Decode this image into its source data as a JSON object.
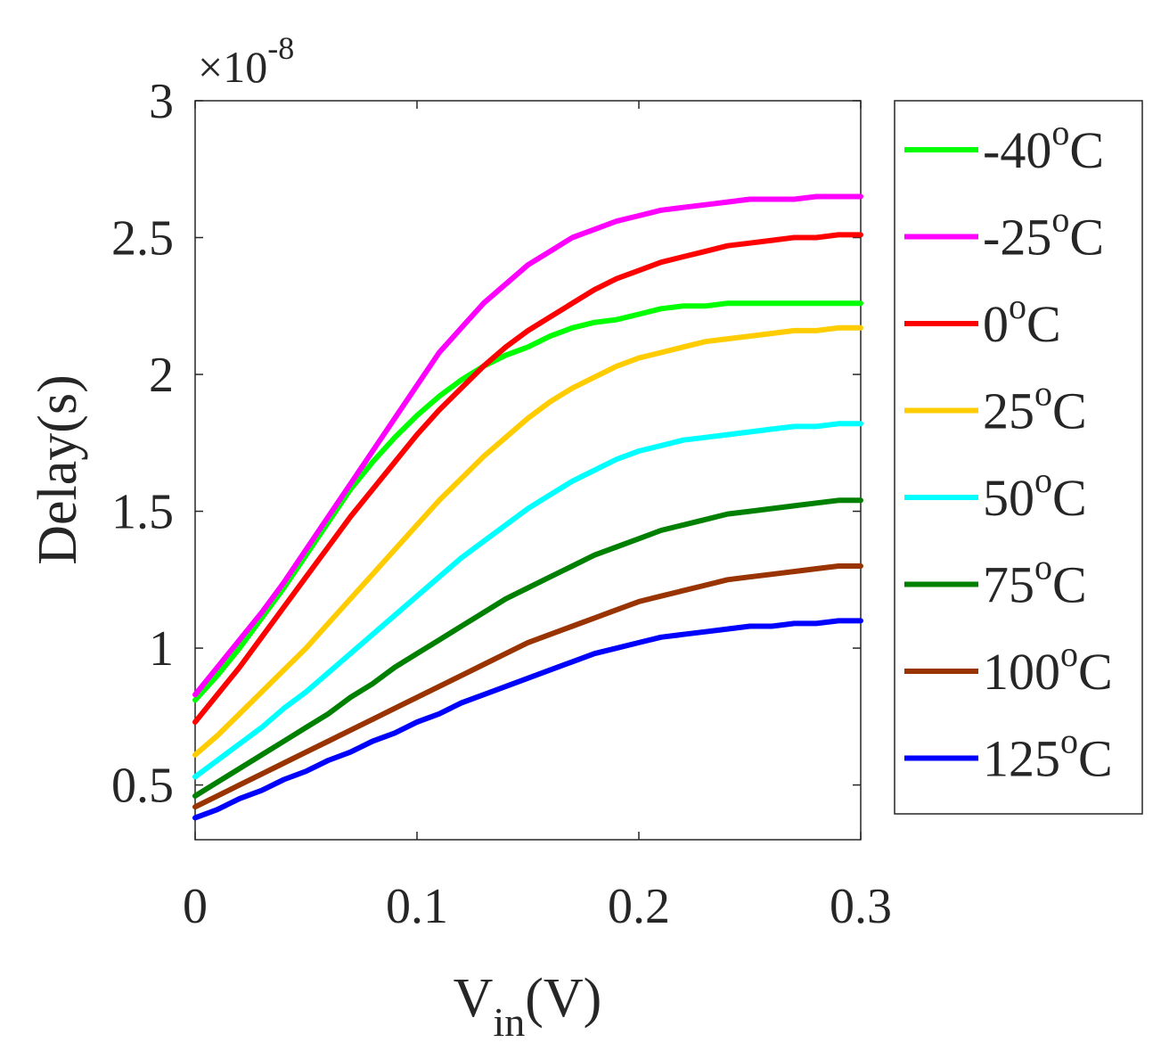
{
  "chart_data": {
    "type": "line",
    "title": "",
    "xlabel": {
      "main": "V",
      "sub": "in",
      "suffix": "(V)"
    },
    "ylabel": "Delay(s)",
    "y_multiplier": {
      "base": "×10",
      "exponent": "-8"
    },
    "xlim": [
      0,
      0.3
    ],
    "ylim": [
      0.3,
      3.0
    ],
    "xticks": [
      0,
      0.1,
      0.2,
      0.3
    ],
    "xtick_labels": [
      "0",
      "0.1",
      "0.2",
      "0.3"
    ],
    "yticks": [
      0.5,
      1,
      1.5,
      2,
      2.5,
      3
    ],
    "ytick_labels": [
      "0.5",
      "1",
      "1.5",
      "2",
      "2.5",
      "3"
    ],
    "legend_position": "outside-right",
    "x": [
      0,
      0.01,
      0.02,
      0.03,
      0.04,
      0.05,
      0.06,
      0.07,
      0.08,
      0.09,
      0.1,
      0.11,
      0.12,
      0.13,
      0.14,
      0.15,
      0.16,
      0.17,
      0.18,
      0.19,
      0.2,
      0.21,
      0.22,
      0.23,
      0.24,
      0.25,
      0.26,
      0.27,
      0.28,
      0.29,
      0.3
    ],
    "series": [
      {
        "name": "-40",
        "unit": "C",
        "color": "#00ff00",
        "values": [
          0.81,
          0.9,
          1.0,
          1.11,
          1.22,
          1.34,
          1.46,
          1.58,
          1.68,
          1.77,
          1.85,
          1.92,
          1.98,
          2.03,
          2.07,
          2.1,
          2.14,
          2.17,
          2.19,
          2.2,
          2.22,
          2.24,
          2.25,
          2.25,
          2.26,
          2.26,
          2.26,
          2.26,
          2.26,
          2.26,
          2.26
        ]
      },
      {
        "name": "-25",
        "unit": "C",
        "color": "#ff00ff",
        "values": [
          0.83,
          0.93,
          1.03,
          1.13,
          1.24,
          1.36,
          1.48,
          1.6,
          1.72,
          1.84,
          1.96,
          2.08,
          2.17,
          2.26,
          2.33,
          2.4,
          2.45,
          2.5,
          2.53,
          2.56,
          2.58,
          2.6,
          2.61,
          2.62,
          2.63,
          2.64,
          2.64,
          2.64,
          2.65,
          2.65,
          2.65
        ]
      },
      {
        "name": "0",
        "unit": "C",
        "color": "#ff0000",
        "values": [
          0.73,
          0.83,
          0.93,
          1.04,
          1.15,
          1.26,
          1.37,
          1.48,
          1.58,
          1.68,
          1.78,
          1.87,
          1.95,
          2.03,
          2.1,
          2.16,
          2.21,
          2.26,
          2.31,
          2.35,
          2.38,
          2.41,
          2.43,
          2.45,
          2.47,
          2.48,
          2.49,
          2.5,
          2.5,
          2.51,
          2.51
        ]
      },
      {
        "name": "25",
        "unit": "C",
        "color": "#ffcc00",
        "values": [
          0.61,
          0.68,
          0.76,
          0.84,
          0.92,
          1.0,
          1.09,
          1.18,
          1.27,
          1.36,
          1.45,
          1.54,
          1.62,
          1.7,
          1.77,
          1.84,
          1.9,
          1.95,
          1.99,
          2.03,
          2.06,
          2.08,
          2.1,
          2.12,
          2.13,
          2.14,
          2.15,
          2.16,
          2.16,
          2.17,
          2.17
        ]
      },
      {
        "name": "50",
        "unit": "C",
        "color": "#00ffff",
        "values": [
          0.53,
          0.59,
          0.65,
          0.71,
          0.78,
          0.84,
          0.91,
          0.98,
          1.05,
          1.12,
          1.19,
          1.26,
          1.33,
          1.39,
          1.45,
          1.51,
          1.56,
          1.61,
          1.65,
          1.69,
          1.72,
          1.74,
          1.76,
          1.77,
          1.78,
          1.79,
          1.8,
          1.81,
          1.81,
          1.82,
          1.82
        ]
      },
      {
        "name": "75",
        "unit": "C",
        "color": "#008000",
        "values": [
          0.46,
          0.51,
          0.56,
          0.61,
          0.66,
          0.71,
          0.76,
          0.82,
          0.87,
          0.93,
          0.98,
          1.03,
          1.08,
          1.13,
          1.18,
          1.22,
          1.26,
          1.3,
          1.34,
          1.37,
          1.4,
          1.43,
          1.45,
          1.47,
          1.49,
          1.5,
          1.51,
          1.52,
          1.53,
          1.54,
          1.54
        ]
      },
      {
        "name": "100",
        "unit": "C",
        "color": "#993300",
        "values": [
          0.42,
          0.46,
          0.5,
          0.54,
          0.58,
          0.62,
          0.66,
          0.7,
          0.74,
          0.78,
          0.82,
          0.86,
          0.9,
          0.94,
          0.98,
          1.02,
          1.05,
          1.08,
          1.11,
          1.14,
          1.17,
          1.19,
          1.21,
          1.23,
          1.25,
          1.26,
          1.27,
          1.28,
          1.29,
          1.3,
          1.3
        ]
      },
      {
        "name": "125",
        "unit": "C",
        "color": "#0000ff",
        "values": [
          0.38,
          0.41,
          0.45,
          0.48,
          0.52,
          0.55,
          0.59,
          0.62,
          0.66,
          0.69,
          0.73,
          0.76,
          0.8,
          0.83,
          0.86,
          0.89,
          0.92,
          0.95,
          0.98,
          1.0,
          1.02,
          1.04,
          1.05,
          1.06,
          1.07,
          1.08,
          1.08,
          1.09,
          1.09,
          1.1,
          1.1
        ]
      }
    ]
  }
}
